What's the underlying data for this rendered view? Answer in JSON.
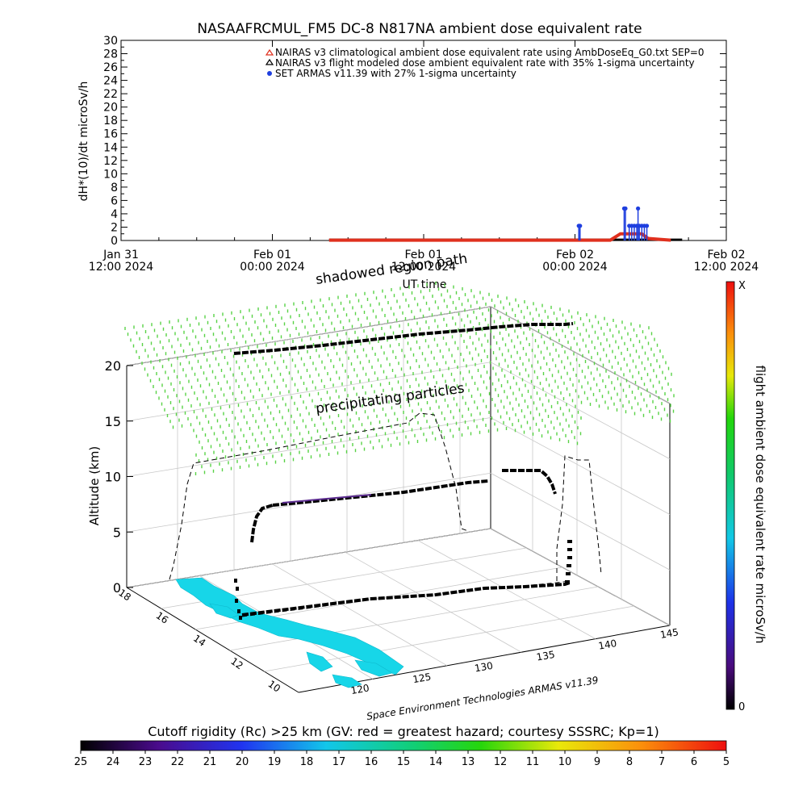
{
  "colors": {
    "climatological": "#e0301e",
    "flight_model": "#000000",
    "armas": "#1f3fdf",
    "particles": "#59d246",
    "ocean_track": "#17d6e8"
  },
  "chart_data": [
    {
      "type": "line",
      "title": "NASAAFRCMUL_FM5 DC-8   N817NA ambient dose equivalent rate",
      "xlabel": "UT time",
      "ylabel": "dH*(10)/dt microSv/h",
      "ylim": [
        0,
        30
      ],
      "yticks": [
        0,
        2,
        4,
        6,
        8,
        10,
        12,
        14,
        16,
        18,
        20,
        22,
        24,
        26,
        28,
        30
      ],
      "xticks": [
        {
          "date": "Jan 31",
          "time": "12:00 2024"
        },
        {
          "date": "Feb 01",
          "time": "00:00 2024"
        },
        {
          "date": "Feb 01",
          "time": "12:00 2024"
        },
        {
          "date": "Feb 02",
          "time": "00:00 2024"
        },
        {
          "date": "Feb 02",
          "time": "12:00 2024"
        }
      ],
      "legend_placement": "top-right",
      "legend": [
        "NAIRAS v3 climatological ambient dose equivalent rate using AmbDoseEq_G0.txt SEP=0",
        "NAIRAS v3 flight modeled dose ambient equivalent rate with 35% 1-sigma uncertainty",
        "SET ARMAS v11.39 with 27% 1-sigma uncertainty"
      ],
      "x_hours_axis": [
        0,
        48
      ],
      "series": [
        {
          "key": "flight_model",
          "values": [
            [
              16.5,
              0.1
            ],
            [
              39.5,
              0.1
            ],
            [
              43.4,
              0.1
            ],
            [
              44.5,
              0.1
            ]
          ]
        },
        {
          "key": "climatological",
          "values": [
            [
              16.5,
              0.05
            ],
            [
              38.8,
              0.05
            ],
            [
              39.6,
              1.0
            ],
            [
              41.3,
              1.0
            ],
            [
              41.8,
              0.3
            ],
            [
              43.6,
              0.05
            ]
          ]
        },
        {
          "key": "armas",
          "points": [
            [
              36.3,
              2.2
            ],
            [
              36.4,
              2.2
            ],
            [
              39.9,
              4.8
            ],
            [
              40.0,
              4.8
            ],
            [
              40.3,
              2.2
            ],
            [
              40.5,
              2.2
            ],
            [
              40.7,
              2.2
            ],
            [
              40.9,
              2.2
            ],
            [
              41.0,
              4.8
            ],
            [
              41.1,
              2.2
            ],
            [
              41.3,
              2.2
            ],
            [
              41.5,
              2.2
            ],
            [
              41.7,
              2.2
            ]
          ]
        }
      ]
    },
    {
      "type": "scatter",
      "title": "",
      "ylabel": "Altitude (km)",
      "zticks": [
        0,
        5,
        10,
        15,
        20
      ],
      "lon_ticks": [
        120,
        125,
        130,
        135,
        140,
        145
      ],
      "lat_ticks": [
        10,
        12,
        14,
        16,
        18
      ],
      "annotations": {
        "region_upper": "shadowed region path",
        "region_particles": "precipitating particles",
        "credit": "Space Environment Technologies ARMAS v11.39"
      },
      "colorbar_right": {
        "label": "flight ambient dose equivalent rate microSv/h",
        "top": "X",
        "bottom": "0"
      },
      "colorbar_bottom": {
        "label": "Cutoff rigidity (Rc) >25 km (GV: red = greatest hazard; courtesy SSSRC; Kp=1)",
        "ticks": [
          "25",
          "24",
          "23",
          "22",
          "21",
          "20",
          "19",
          "18",
          "17",
          "16",
          "15",
          "14",
          "13",
          "12",
          "11",
          "10",
          "9",
          "8",
          "7",
          "6",
          "5"
        ]
      }
    }
  ]
}
